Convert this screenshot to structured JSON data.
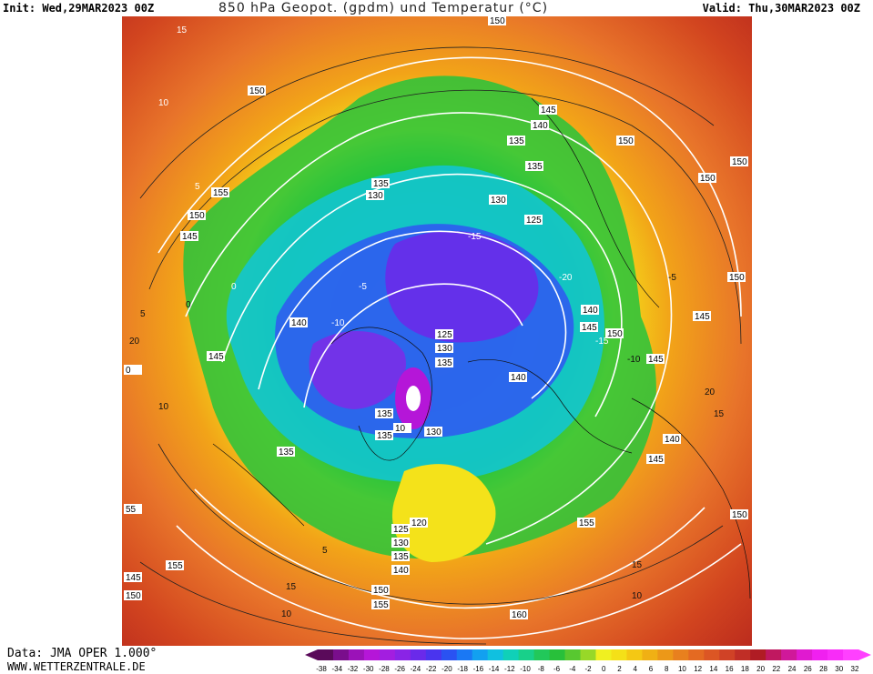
{
  "header": {
    "init": "Init: Wed,29MAR2023 00Z",
    "title": "850 hPa Geopot. (gpdm) und Temperatur (°C)",
    "valid": "Valid: Thu,30MAR2023 00Z"
  },
  "footer": {
    "data_source": "Data: JMA OPER 1.000°",
    "website": "WWW.WETTERZENTRALE.DE"
  },
  "colors": {
    "warm": "#e8742a",
    "very_warm": "#b8281e",
    "yellow": "#f4e21a",
    "green": "#27c33c",
    "cyan": "#10c6d9",
    "blue": "#2f5cf0",
    "violet": "#7a2ee8",
    "contour": "#ffffff"
  },
  "map": {
    "geopotential_labels": [
      "150",
      "150",
      "150",
      "155",
      "150",
      "145",
      "140",
      "145",
      "135",
      "130",
      "135",
      "130",
      "125",
      "145",
      "140",
      "135",
      "150",
      "150",
      "150",
      "145",
      "140",
      "145",
      "150",
      "125",
      "130",
      "135",
      "140",
      "145",
      "135",
      "130",
      "135",
      "140",
      "145",
      "150",
      "155",
      "150",
      "155",
      "160",
      "140",
      "135",
      "130",
      "125",
      "120",
      "150",
      "145",
      "155",
      "155",
      "55",
      "0",
      "10",
      "135"
    ],
    "temperature_labels": [
      "15",
      "10",
      "5",
      "0",
      "-5",
      "-10",
      "-15",
      "-20",
      "-15",
      "-10",
      "-5",
      "0",
      "5",
      "10",
      "15",
      "20",
      "15",
      "10",
      "5",
      "10",
      "15",
      "20"
    ]
  },
  "scale": {
    "labels": [
      "-38",
      "-34",
      "-32",
      "-30",
      "-28",
      "-26",
      "-24",
      "-22",
      "-20",
      "-18",
      "-16",
      "-14",
      "-12",
      "-10",
      "-8",
      "-6",
      "-4",
      "-2",
      "0",
      "2",
      "4",
      "6",
      "8",
      "10",
      "12",
      "14",
      "16",
      "18",
      "20",
      "22",
      "24",
      "26",
      "28",
      "30",
      "32"
    ],
    "colors": [
      "#5a0a5a",
      "#7a0e8c",
      "#9b12b8",
      "#b516d8",
      "#a31ee0",
      "#8a24e6",
      "#6a2aea",
      "#4a34ee",
      "#2a52f2",
      "#1a78f4",
      "#12a0f0",
      "#10c0e0",
      "#10d0b8",
      "#18d08a",
      "#22c85a",
      "#28c03a",
      "#58c830",
      "#98d828",
      "#f0f020",
      "#f4e018",
      "#f4c814",
      "#f0b014",
      "#ec9818",
      "#e8801e",
      "#e46a22",
      "#dc5624",
      "#d04226",
      "#c02e26",
      "#b01c24",
      "#c01860",
      "#d0189a",
      "#e01ad0",
      "#f020f0",
      "#f82cf8",
      "#ff40ff"
    ]
  }
}
